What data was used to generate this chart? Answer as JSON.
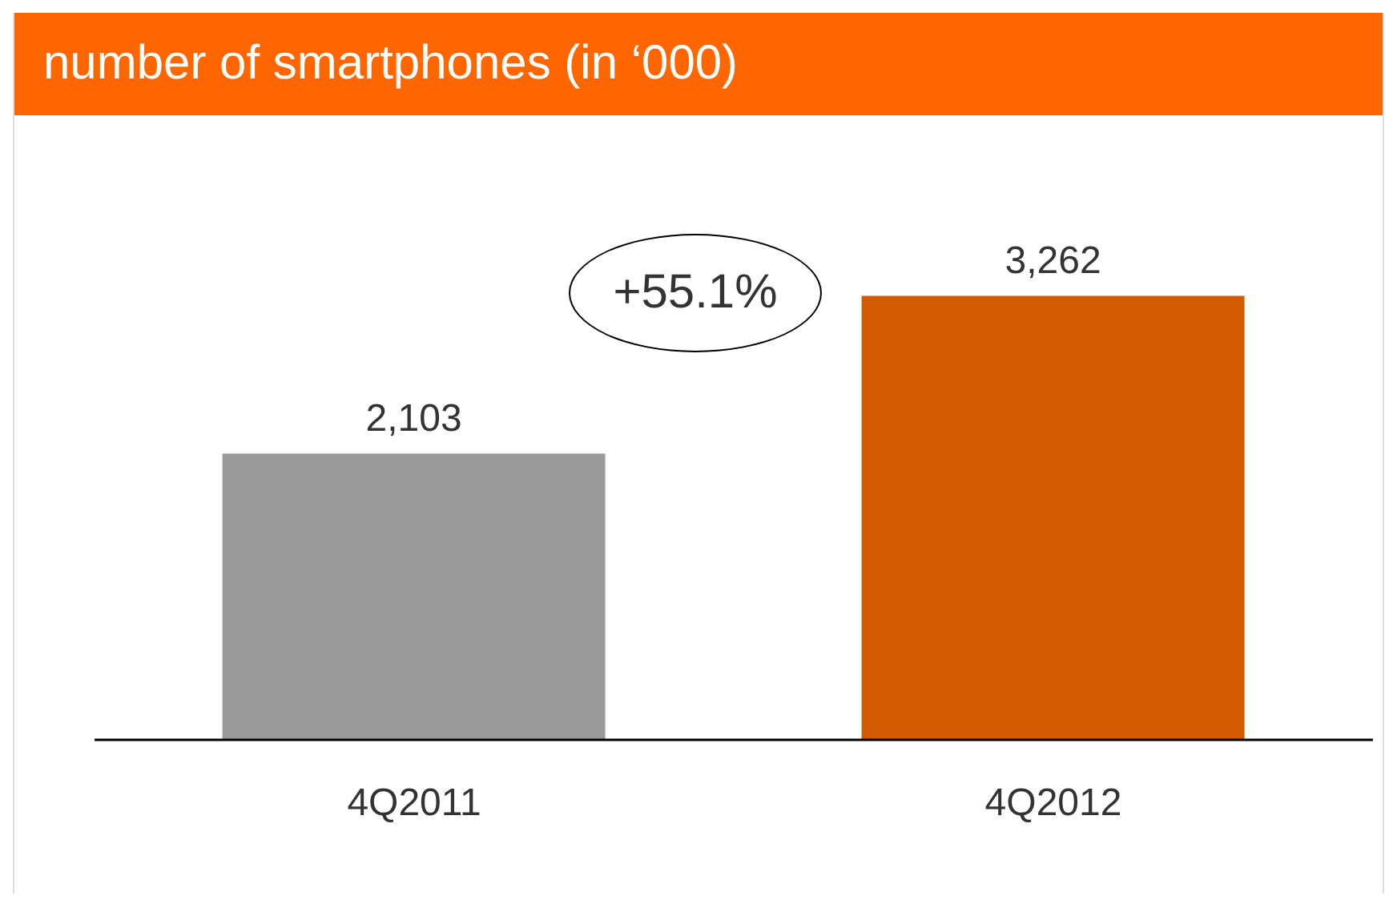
{
  "chart_data": {
    "type": "bar",
    "title": "number of smartphones (in ‘000)",
    "categories": [
      "4Q2011",
      "4Q2012"
    ],
    "values": [
      2103,
      3262
    ],
    "colors": [
      "#9a9a9a",
      "#d45a00"
    ],
    "value_labels": [
      "2,103",
      "3,262"
    ],
    "annotations": [
      "+55.1%"
    ]
  }
}
